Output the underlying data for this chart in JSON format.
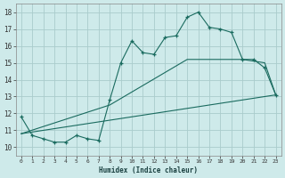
{
  "xlabel": "Humidex (Indice chaleur)",
  "bg_color": "#ceeaea",
  "grid_color": "#aacccc",
  "line_color": "#1a6b5f",
  "xlim": [
    -0.5,
    23.5
  ],
  "ylim": [
    9.5,
    18.5
  ],
  "xticks": [
    0,
    1,
    2,
    3,
    4,
    5,
    6,
    7,
    8,
    9,
    10,
    11,
    12,
    13,
    14,
    15,
    16,
    17,
    18,
    19,
    20,
    21,
    22,
    23
  ],
  "yticks": [
    10,
    11,
    12,
    13,
    14,
    15,
    16,
    17,
    18
  ],
  "line1_x": [
    0,
    1,
    2,
    3,
    4,
    5,
    6,
    7,
    8,
    9,
    10,
    11,
    12,
    13,
    14,
    15,
    16,
    17,
    18,
    19,
    20,
    21,
    22,
    23
  ],
  "line1_y": [
    11.8,
    10.7,
    10.5,
    10.3,
    10.3,
    10.7,
    10.5,
    10.4,
    12.8,
    15.0,
    16.3,
    15.6,
    15.5,
    16.5,
    16.6,
    17.7,
    18.0,
    17.1,
    17.0,
    16.8,
    15.2,
    15.2,
    14.7,
    13.1
  ],
  "line2_x": [
    0,
    23
  ],
  "line2_y": [
    10.8,
    13.1
  ],
  "line3_x": [
    0,
    8,
    15,
    20,
    22,
    23
  ],
  "line3_y": [
    10.8,
    12.5,
    15.2,
    15.2,
    15.0,
    13.1
  ]
}
